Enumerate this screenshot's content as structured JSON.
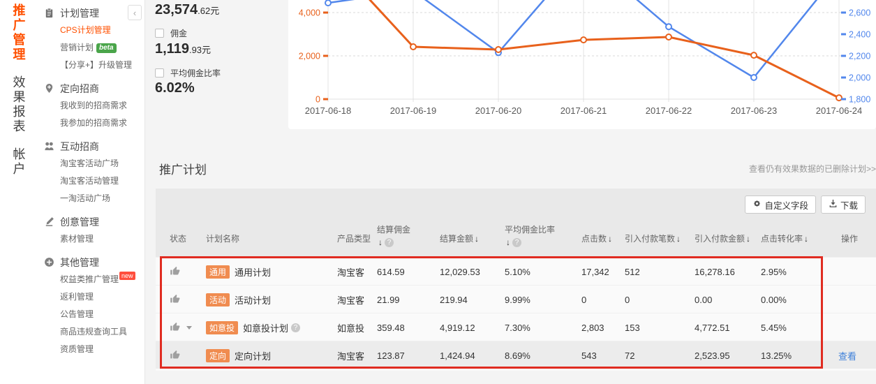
{
  "vertical_nav": {
    "items": [
      {
        "label": "推广管理",
        "active": true
      },
      {
        "label": "效果报表",
        "active": false
      },
      {
        "label": "帐户",
        "active": false
      }
    ]
  },
  "sidebar": {
    "collapse_glyph": "‹",
    "groups": [
      {
        "title": "计划管理",
        "icon": "clipboard-icon",
        "items": [
          {
            "label": "CPS计划管理",
            "active": true
          },
          {
            "label": "营销计划",
            "badge": "beta"
          },
          {
            "label": "【分享+】升级管理"
          }
        ]
      },
      {
        "title": "定向招商",
        "icon": "pin-icon",
        "items": [
          {
            "label": "我收到的招商需求"
          },
          {
            "label": "我参加的招商需求"
          }
        ]
      },
      {
        "title": "互动招商",
        "icon": "people-icon",
        "items": [
          {
            "label": "淘宝客活动广场"
          },
          {
            "label": "淘宝客活动管理"
          },
          {
            "label": "一淘活动广场"
          }
        ]
      },
      {
        "title": "创意管理",
        "icon": "brush-icon",
        "items": [
          {
            "label": "素材管理"
          }
        ]
      },
      {
        "title": "其他管理",
        "icon": "plus-circle-icon",
        "items": [
          {
            "label": "权益类推广管理",
            "badge": "new"
          },
          {
            "label": "返利管理"
          },
          {
            "label": "公告管理"
          },
          {
            "label": "商品违规查询工具"
          },
          {
            "label": "资质管理"
          }
        ]
      }
    ]
  },
  "stats": {
    "value1_main": "23,574",
    "value1_suffix": ".62元",
    "checkbox1_label": "佣金",
    "value2_main": "1,119",
    "value2_suffix": ".93元",
    "checkbox2_label": "平均佣金比率",
    "value3": "6.02%"
  },
  "chart_data": {
    "type": "line",
    "x": [
      "2017-06-18",
      "2017-06-19",
      "2017-06-20",
      "2017-06-21",
      "2017-06-22",
      "2017-06-23",
      "2017-06-24"
    ],
    "series": [
      {
        "name": "blue-series",
        "color": "#5287ec",
        "axis": "right",
        "values": [
          2690,
          2800,
          2230,
          3140,
          2470,
          2000,
          2975
        ]
      },
      {
        "name": "orange-series",
        "color": "#e8611c",
        "axis": "left",
        "values": [
          6680,
          2420,
          2290,
          2740,
          2870,
          2030,
          60
        ]
      }
    ],
    "left_axis": {
      "color": "#e8611c",
      "ticks": [
        {
          "label": "0",
          "value": 0
        },
        {
          "label": "2,000",
          "value": 2000
        },
        {
          "label": "4,000",
          "value": 4000
        }
      ]
    },
    "right_axis": {
      "color": "#5287ec",
      "ticks": [
        {
          "label": "1,800",
          "value": 1800
        },
        {
          "label": "2,000",
          "value": 2000
        },
        {
          "label": "2,200",
          "value": 2200
        },
        {
          "label": "2,400",
          "value": 2400
        },
        {
          "label": "2,600",
          "value": 2600
        }
      ]
    },
    "grid": true,
    "clipped_top": true,
    "legend_position": "none"
  },
  "plans": {
    "title": "推广计划",
    "deleted_link": "查看仍有效果数据的已删除计划>>",
    "toolbar": {
      "customize_label": "自定义字段",
      "download_label": "下载"
    },
    "table": {
      "sort_glyph": "↓",
      "columns": [
        {
          "label": "状态"
        },
        {
          "label": "计划名称"
        },
        {
          "label": "产品类型"
        },
        {
          "label": "结算佣金",
          "sort": true,
          "help": true,
          "two_line": true
        },
        {
          "label": "结算金额",
          "sort": true
        },
        {
          "label": "平均佣金比率",
          "sort": true,
          "help": true,
          "two_line": true
        },
        {
          "label": "点击数",
          "sort": true
        },
        {
          "label": "引入付款笔数",
          "sort": true
        },
        {
          "label": "引入付款金额",
          "sort": true
        },
        {
          "label": "点击转化率",
          "sort": true
        },
        {
          "label": "操作"
        }
      ],
      "rows": [
        {
          "status": "thumb-up",
          "badge": "通用",
          "name": "通用计划",
          "type": "淘宝客",
          "commission": "614.59",
          "amount": "12,029.53",
          "rate": "5.10%",
          "clicks": "17,342",
          "orders": "512",
          "pay_amount": "16,278.16",
          "cvr": "2.95%",
          "action": ""
        },
        {
          "status": "thumb-up",
          "badge": "活动",
          "name": "活动计划",
          "type": "淘宝客",
          "commission": "21.99",
          "amount": "219.94",
          "rate": "9.99%",
          "clicks": "0",
          "orders": "0",
          "pay_amount": "0.00",
          "cvr": "0.00%",
          "action": ""
        },
        {
          "status": "thumb-up",
          "caret": true,
          "badge": "如意投",
          "name": "如意投计划",
          "name_help": true,
          "type": "如意投",
          "commission": "359.48",
          "amount": "4,919.12",
          "rate": "7.30%",
          "clicks": "2,803",
          "orders": "153",
          "pay_amount": "4,772.51",
          "cvr": "5.45%",
          "action": ""
        },
        {
          "status": "thumb-up",
          "badge": "定向",
          "name": "定向计划",
          "type": "淘宝客",
          "commission": "123.87",
          "amount": "1,424.94",
          "rate": "8.69%",
          "clicks": "543",
          "orders": "72",
          "pay_amount": "2,523.95",
          "cvr": "13.25%",
          "action": "查看",
          "highlighted": true
        }
      ]
    }
  },
  "colors": {
    "brand": "#ff5000",
    "chart_blue": "#5287ec",
    "chart_orange": "#e8611c",
    "badge_orange": "#f08c50",
    "highlight_border": "#e02c21",
    "link_blue": "#3d7fd9",
    "beta_green": "#4aa54a",
    "new_red": "#ff4e3d"
  }
}
